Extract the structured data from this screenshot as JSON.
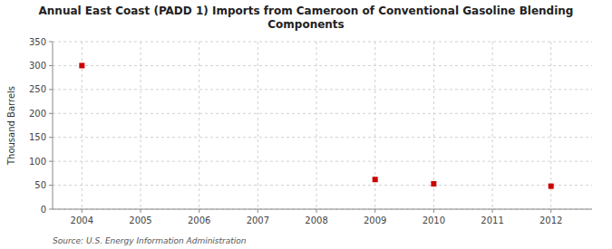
{
  "chart_data": {
    "type": "scatter",
    "title": "Annual East Coast (PADD 1) Imports from Cameroon of Conventional Gasoline Blending\nComponents",
    "ylabel": "Thousand Barrels",
    "source": "Source: U.S. Energy Information Administration",
    "x": [
      2004,
      2009,
      2010,
      2012
    ],
    "values": [
      300,
      62,
      53,
      48
    ],
    "color": "#cc0000",
    "marker": "square",
    "xlim": [
      2003.5,
      2012.7
    ],
    "xticks": [
      2004,
      2005,
      2006,
      2007,
      2008,
      2009,
      2010,
      2011,
      2012
    ],
    "ylim": [
      0,
      350
    ],
    "yticks": [
      0,
      50,
      100,
      150,
      200,
      250,
      300,
      350
    ],
    "grid": true
  }
}
